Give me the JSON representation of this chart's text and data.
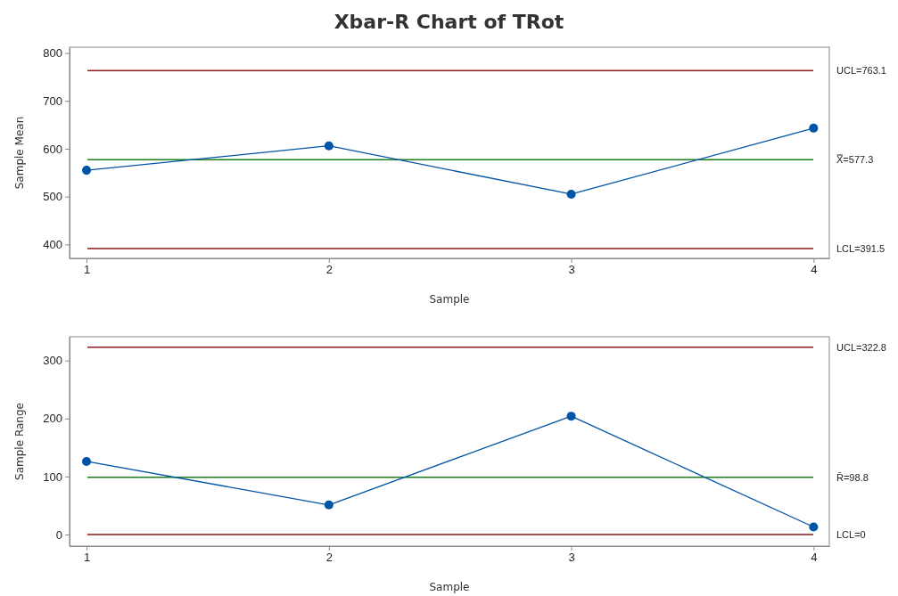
{
  "chart_data": [
    {
      "type": "line",
      "title": "Xbar-R Chart of TRot",
      "xlabel": "Sample",
      "ylabel": "Sample Mean",
      "x": [
        1,
        2,
        3,
        4
      ],
      "series": [
        {
          "color": "#0054a6",
          "values": [
            555,
            606,
            505,
            643
          ]
        }
      ],
      "marker": "circle",
      "grid": false,
      "xlim": [
        0.93,
        4.065
      ],
      "xticks": [
        1,
        2,
        3,
        4
      ],
      "ylim": [
        371,
        812
      ],
      "yticks": [
        400,
        500,
        600,
        700,
        800
      ],
      "ref_lines": [
        {
          "axis": "y",
          "value": 763.1,
          "label": "UCL=763.1",
          "color": "#8b1a1a"
        },
        {
          "axis": "y",
          "value": 577.3,
          "label": "X̿=577.3",
          "color": "#1a7f1a"
        },
        {
          "axis": "y",
          "value": 391.5,
          "label": "LCL=391.5",
          "color": "#8b1a1a"
        }
      ]
    },
    {
      "type": "line",
      "xlabel": "Sample",
      "ylabel": "Sample Range",
      "x": [
        1,
        2,
        3,
        4
      ],
      "series": [
        {
          "color": "#0054a6",
          "values": [
            126,
            51,
            204,
            13
          ]
        }
      ],
      "marker": "circle",
      "grid": false,
      "xlim": [
        0.93,
        4.065
      ],
      "xticks": [
        1,
        2,
        3,
        4
      ],
      "ylim": [
        -20,
        341
      ],
      "yticks": [
        0,
        100,
        200,
        300
      ],
      "ref_lines": [
        {
          "axis": "y",
          "value": 322.8,
          "label": "UCL=322.8",
          "color": "#8b1a1a"
        },
        {
          "axis": "y",
          "value": 98.8,
          "label": "R̄=98.8",
          "color": "#1a7f1a"
        },
        {
          "axis": "y",
          "value": 0,
          "label": "LCL=0",
          "color": "#8b1a1a"
        }
      ]
    }
  ]
}
